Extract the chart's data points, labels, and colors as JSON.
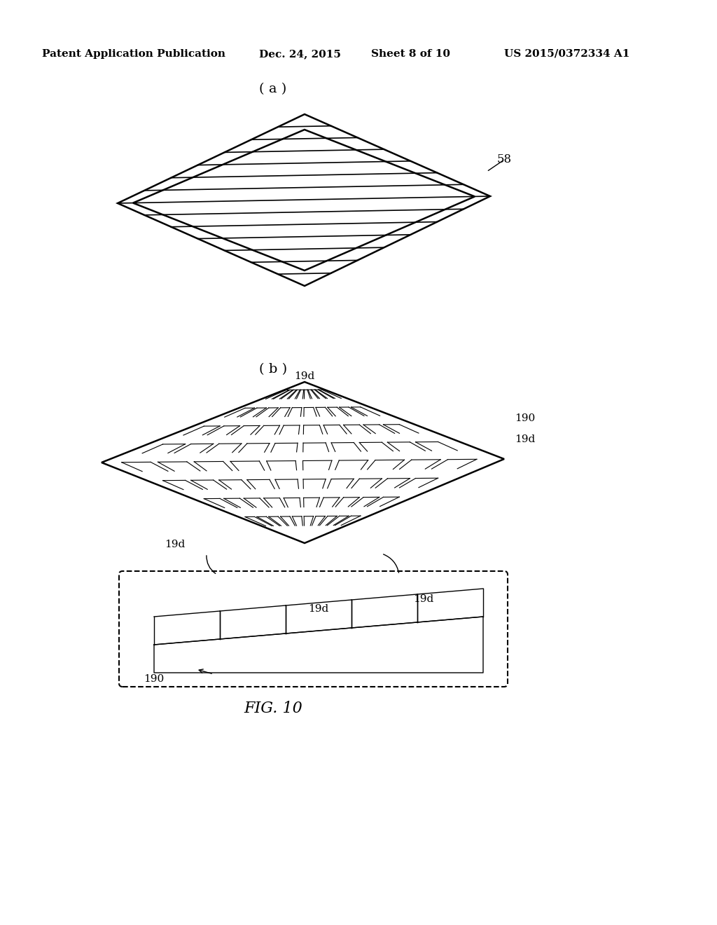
{
  "bg_color": "#ffffff",
  "header_text": "Patent Application Publication",
  "header_date": "Dec. 24, 2015",
  "header_sheet": "Sheet 8 of 10",
  "header_patent": "US 2015/0372334 A1",
  "fig_label": "FIG. 10",
  "label_a": "( a )",
  "label_b": "( b )",
  "label_58": "58",
  "label_19d_1": "19d",
  "label_19d_2": "19d",
  "label_19d_3": "19d",
  "label_19d_4": "19d",
  "label_190_1": "190",
  "label_190_2": "190"
}
